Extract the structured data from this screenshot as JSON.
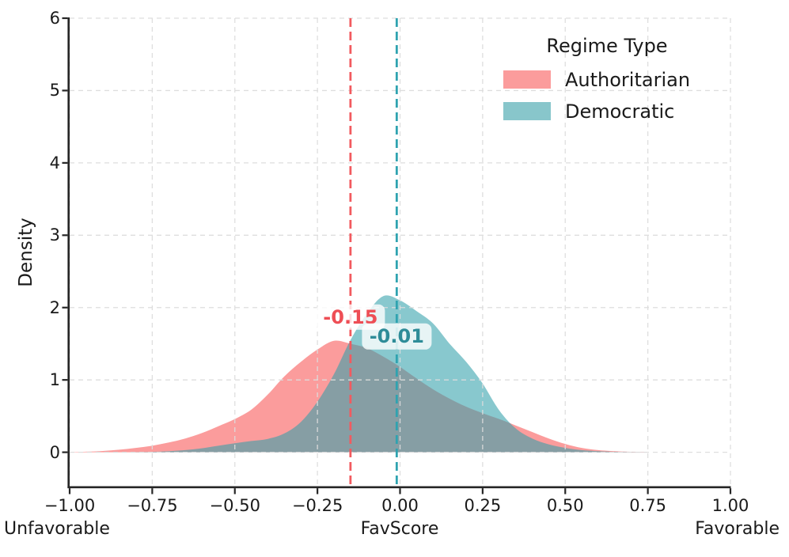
{
  "chart_data": {
    "type": "area",
    "subtype": "kde-density",
    "xlabel": "FavScore",
    "ylabel": "Density",
    "axis_caption_left": "Unfavorable",
    "axis_caption_right": "Favorable",
    "xlim": [
      -1.0,
      1.0
    ],
    "ylim": [
      -0.48,
      6.0
    ],
    "xtick_values": [
      -1.0,
      -0.75,
      -0.5,
      -0.25,
      0.0,
      0.25,
      0.5,
      0.75,
      1.0
    ],
    "xtick_labels": [
      "−1.00",
      "−0.75",
      "−0.50",
      "−0.25",
      "0.00",
      "0.25",
      "0.50",
      "0.75",
      "1.00"
    ],
    "ytick_values": [
      0,
      1,
      2,
      3,
      4,
      5,
      6
    ],
    "ytick_labels": [
      "0",
      "1",
      "2",
      "3",
      "4",
      "5",
      "6"
    ],
    "grid": {
      "show": true,
      "style": "dashed",
      "color": "#DCDCDC"
    },
    "spine_color": "#262626",
    "legend": {
      "title": "Regime Type",
      "position": "upper right",
      "entries": [
        {
          "label": "Authoritarian",
          "swatch_color": "#FB9C9C"
        },
        {
          "label": "Democratic",
          "swatch_color": "#88C6CB"
        }
      ]
    },
    "series": [
      {
        "name": "Authoritarian",
        "fill_color": "#FB9C9C",
        "x": [
          -1.0,
          -0.95,
          -0.9,
          -0.85,
          -0.8,
          -0.75,
          -0.7,
          -0.65,
          -0.6,
          -0.55,
          -0.5,
          -0.45,
          -0.4,
          -0.35,
          -0.3,
          -0.25,
          -0.2,
          -0.15,
          -0.1,
          -0.05,
          0.0,
          0.05,
          0.1,
          0.15,
          0.2,
          0.25,
          0.3,
          0.35,
          0.4,
          0.45,
          0.5,
          0.55,
          0.6,
          0.65,
          0.7,
          0.75
        ],
        "density": [
          0.003,
          0.008,
          0.018,
          0.035,
          0.06,
          0.09,
          0.135,
          0.19,
          0.265,
          0.36,
          0.46,
          0.59,
          0.8,
          1.05,
          1.25,
          1.42,
          1.54,
          1.5,
          1.44,
          1.32,
          1.18,
          1.02,
          0.87,
          0.74,
          0.63,
          0.54,
          0.46,
          0.37,
          0.28,
          0.19,
          0.115,
          0.06,
          0.03,
          0.015,
          0.007,
          0.003
        ],
        "mean_line": {
          "value": -0.15,
          "label": "-0.15",
          "line_color": "#F25A5F",
          "label_color": "#EE4E55",
          "label_anchor_y": 1.87
        }
      },
      {
        "name": "Democratic",
        "fill_color": "rgba(50,160,170,0.58)",
        "x": [
          -0.8,
          -0.75,
          -0.7,
          -0.65,
          -0.6,
          -0.55,
          -0.5,
          -0.45,
          -0.4,
          -0.35,
          -0.3,
          -0.25,
          -0.2,
          -0.15,
          -0.1,
          -0.05,
          0.0,
          0.05,
          0.1,
          0.15,
          0.2,
          0.25,
          0.3,
          0.35,
          0.4,
          0.45,
          0.5,
          0.55,
          0.6,
          0.65,
          0.7,
          0.75
        ],
        "density": [
          0.002,
          0.006,
          0.015,
          0.03,
          0.055,
          0.09,
          0.125,
          0.155,
          0.185,
          0.26,
          0.42,
          0.7,
          1.08,
          1.55,
          1.92,
          2.16,
          2.1,
          1.95,
          1.78,
          1.5,
          1.25,
          0.95,
          0.58,
          0.33,
          0.19,
          0.11,
          0.06,
          0.03,
          0.015,
          0.007,
          0.003,
          0.001
        ],
        "mean_line": {
          "value": -0.01,
          "label": "-0.01",
          "line_color": "#2FA3B0",
          "label_color": "#2E8C98",
          "label_anchor_y": 1.6
        }
      }
    ]
  }
}
